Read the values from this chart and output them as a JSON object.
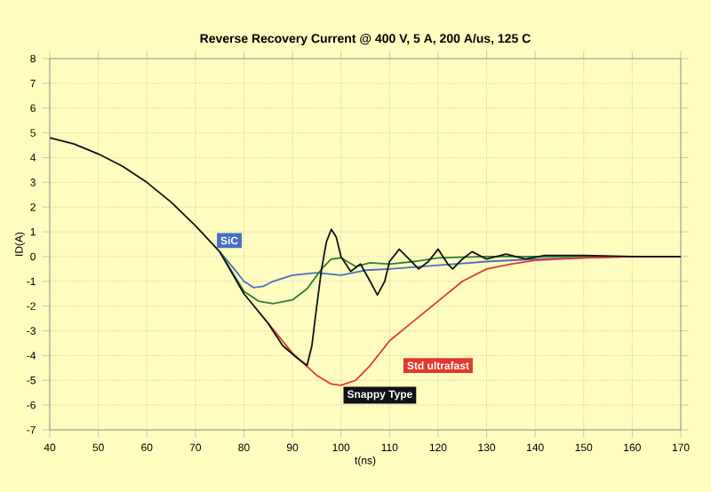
{
  "chart_data": {
    "type": "line",
    "title": "Reverse Recovery Current @ 400 V, 5 A, 200 A/us, 125 C",
    "xlabel": "t(ns)",
    "ylabel": "ID(A)",
    "xlim": [
      40,
      170
    ],
    "ylim": [
      -7,
      8
    ],
    "xticks": [
      40,
      50,
      60,
      70,
      80,
      90,
      100,
      110,
      120,
      130,
      140,
      150,
      160,
      170
    ],
    "yticks": [
      -7,
      -6,
      -5,
      -4,
      -3,
      -2,
      -1,
      0,
      1,
      2,
      3,
      4,
      5,
      6,
      7,
      8
    ],
    "grid": true,
    "legend": false,
    "marker": "none",
    "line_style": "solid",
    "series": [
      {
        "name": "SiC",
        "color": "#4a6fc0",
        "x": [
          75,
          78,
          80,
          82,
          84,
          86,
          90,
          95,
          100,
          105,
          110,
          120,
          130,
          140,
          150,
          160,
          170
        ],
        "values": [
          0.2,
          -0.5,
          -1.0,
          -1.25,
          -1.2,
          -1.0,
          -0.75,
          -0.65,
          -0.75,
          -0.55,
          -0.5,
          -0.35,
          -0.2,
          -0.1,
          -0.05,
          0,
          0
        ]
      },
      {
        "color": "#2e7d3a",
        "x": [
          75,
          80,
          83,
          86,
          90,
          93,
          96,
          98,
          100,
          103,
          106,
          110,
          115,
          120,
          130,
          140,
          150,
          170
        ],
        "values": [
          0.2,
          -1.4,
          -1.8,
          -1.9,
          -1.75,
          -1.3,
          -0.5,
          -0.1,
          -0.05,
          -0.4,
          -0.25,
          -0.3,
          -0.2,
          -0.05,
          0,
          0,
          0,
          0
        ]
      },
      {
        "name": "Std ultrafast",
        "color": "#e03a2e",
        "x": [
          85,
          90,
          95,
          98,
          100,
          103,
          106,
          110,
          115,
          120,
          125,
          130,
          135,
          140,
          150,
          160,
          170
        ],
        "values": [
          -2.7,
          -3.9,
          -4.8,
          -5.15,
          -5.2,
          -5.0,
          -4.4,
          -3.4,
          -2.6,
          -1.8,
          -1.0,
          -0.5,
          -0.3,
          -0.15,
          -0.05,
          0,
          0
        ]
      },
      {
        "name": "Snappy Type",
        "color": "#111111",
        "x": [
          40,
          45,
          50,
          55,
          60,
          65,
          70,
          75,
          80,
          85,
          88,
          91,
          93,
          94,
          95,
          96,
          97,
          98,
          99,
          100,
          102,
          104,
          106,
          107.5,
          109,
          110,
          112,
          114,
          116,
          118,
          120,
          122,
          123,
          125,
          127,
          130,
          134,
          138,
          142,
          150,
          160,
          170
        ],
        "values": [
          4.8,
          4.55,
          4.15,
          3.65,
          3.0,
          2.2,
          1.25,
          0.2,
          -1.5,
          -2.7,
          -3.6,
          -4.1,
          -4.4,
          -3.6,
          -2.0,
          -0.5,
          0.6,
          1.1,
          0.8,
          0,
          -0.6,
          -0.3,
          -1.0,
          -1.55,
          -1.0,
          -0.2,
          0.3,
          -0.1,
          -0.5,
          -0.2,
          0.3,
          -0.3,
          -0.5,
          -0.1,
          0.2,
          -0.1,
          0.1,
          -0.1,
          0.05,
          0.05,
          0,
          0
        ]
      }
    ]
  }
}
